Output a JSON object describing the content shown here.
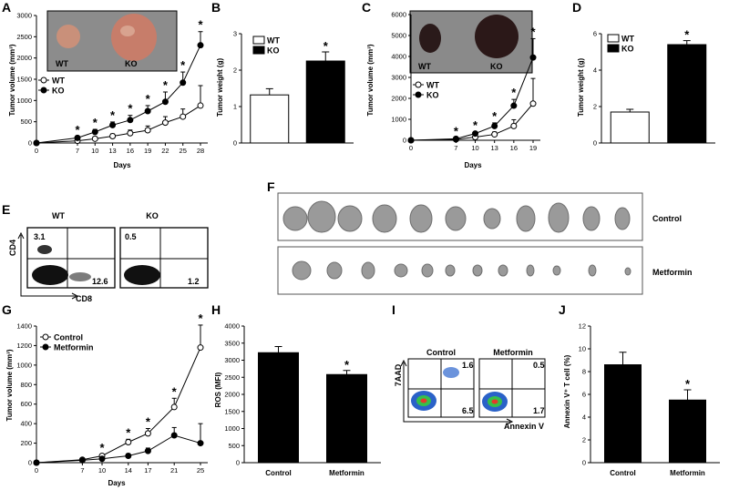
{
  "panels": {
    "A": {
      "letter": "A",
      "ylabel": "Tumor volume (mm³)",
      "xlabel": "Days",
      "photo_labels": [
        "WT",
        "KO"
      ]
    },
    "B": {
      "letter": "B",
      "ylabel": "Tumor weight (g)"
    },
    "C": {
      "letter": "C",
      "ylabel": "Tumor volume (mm³)",
      "xlabel": "Days",
      "photo_labels": [
        "WT",
        "KO"
      ]
    },
    "D": {
      "letter": "D",
      "ylabel": "Tumor weight (g)"
    },
    "E": {
      "letter": "E",
      "col_labels": [
        "WT",
        "KO"
      ],
      "xaxis": "CD8",
      "yaxis": "CD4",
      "quadrants": [
        {
          "ul": "3.1",
          "lr": "12.6"
        },
        {
          "ul": "0.5",
          "lr": "1.2"
        }
      ]
    },
    "F": {
      "letter": "F",
      "rows": [
        "Control",
        "Metformin"
      ]
    },
    "G": {
      "letter": "G",
      "ylabel": "Tumor volume (mm³)",
      "xlabel": "Days"
    },
    "H": {
      "letter": "H",
      "ylabel": "ROS (MFI)"
    },
    "I": {
      "letter": "I",
      "col_labels": [
        "Control",
        "Metformin"
      ],
      "xaxis": "Annexin V",
      "yaxis": "7AAD",
      "quadrants": [
        {
          "ur": "1.6",
          "lr": "6.5"
        },
        {
          "ur": "0.5",
          "lr": "1.7"
        }
      ]
    },
    "J": {
      "letter": "J",
      "ylabel": "Annexin V⁺ T cell (%)"
    }
  },
  "chart_data": [
    {
      "id": "A",
      "type": "line",
      "x": [
        0,
        7,
        10,
        13,
        16,
        19,
        22,
        25,
        28
      ],
      "ylim": [
        0,
        3000
      ],
      "yticks": [
        0,
        500,
        1000,
        1500,
        2000,
        2500,
        3000
      ],
      "series": [
        {
          "name": "WT",
          "values": [
            0,
            50,
            100,
            160,
            230,
            300,
            480,
            620,
            880
          ],
          "err": [
            0,
            25,
            45,
            55,
            75,
            100,
            140,
            180,
            470
          ],
          "fill": "#fff"
        },
        {
          "name": "KO",
          "values": [
            0,
            120,
            260,
            420,
            540,
            750,
            970,
            1420,
            2300
          ],
          "err": [
            0,
            30,
            60,
            75,
            110,
            130,
            230,
            250,
            320
          ],
          "fill": "#000"
        }
      ],
      "star_idx": [
        1,
        2,
        3,
        4,
        5,
        6,
        7,
        8
      ]
    },
    {
      "id": "B",
      "type": "bar",
      "categories": [
        "WT",
        "KO"
      ],
      "values": [
        1.32,
        2.25
      ],
      "err": [
        0.17,
        0.25
      ],
      "ylim": [
        0,
        3
      ],
      "yticks": [
        0,
        1,
        2,
        3
      ],
      "fills": [
        "#fff",
        "#000"
      ],
      "star": [
        false,
        true
      ]
    },
    {
      "id": "C",
      "type": "line",
      "x": [
        0,
        7,
        10,
        13,
        16,
        19
      ],
      "ylim": [
        0,
        6000
      ],
      "yticks": [
        0,
        1000,
        2000,
        3000,
        4000,
        5000,
        6000
      ],
      "series": [
        {
          "name": "WT",
          "values": [
            0,
            40,
            150,
            280,
            680,
            1750
          ],
          "err": [
            0,
            30,
            50,
            120,
            300,
            1200
          ],
          "fill": "#fff"
        },
        {
          "name": "KO",
          "values": [
            0,
            70,
            320,
            680,
            1650,
            3950
          ],
          "err": [
            0,
            40,
            70,
            150,
            300,
            900
          ],
          "fill": "#000"
        }
      ],
      "star_idx": [
        1,
        2,
        3,
        4,
        5
      ]
    },
    {
      "id": "D",
      "type": "bar",
      "categories": [
        "WT",
        "KO"
      ],
      "values": [
        1.7,
        5.4
      ],
      "err": [
        0.15,
        0.22
      ],
      "ylim": [
        0,
        6
      ],
      "yticks": [
        0,
        2,
        4,
        6
      ],
      "fills": [
        "#fff",
        "#000"
      ],
      "star": [
        false,
        true
      ]
    },
    {
      "id": "G",
      "type": "line",
      "x": [
        0,
        7,
        10,
        14,
        17,
        21,
        25
      ],
      "ylim": [
        0,
        1400
      ],
      "yticks": [
        0,
        200,
        400,
        600,
        800,
        1000,
        1200,
        1400
      ],
      "series": [
        {
          "name": "Control",
          "values": [
            0,
            30,
            70,
            210,
            300,
            570,
            1180
          ],
          "err": [
            0,
            10,
            15,
            30,
            50,
            90,
            230
          ],
          "fill": "#fff"
        },
        {
          "name": "Metformin",
          "values": [
            0,
            25,
            40,
            70,
            120,
            280,
            200
          ],
          "err": [
            0,
            10,
            10,
            20,
            30,
            80,
            200
          ],
          "fill": "#000"
        }
      ],
      "star_idx": [
        2,
        3,
        4,
        5,
        6
      ]
    },
    {
      "id": "H",
      "type": "bar",
      "categories": [
        "Control",
        "Metformin"
      ],
      "values": [
        3220,
        2580
      ],
      "err": [
        180,
        120
      ],
      "ylim": [
        0,
        4000
      ],
      "yticks": [
        0,
        500,
        1000,
        1500,
        2000,
        2500,
        3000,
        3500,
        4000
      ],
      "fills": [
        "#000",
        "#000"
      ],
      "star": [
        false,
        true
      ]
    },
    {
      "id": "J",
      "type": "bar",
      "categories": [
        "Control",
        "Metformin"
      ],
      "values": [
        8.6,
        5.5
      ],
      "err": [
        1.1,
        0.9
      ],
      "ylim": [
        0,
        12
      ],
      "yticks": [
        0,
        2,
        4,
        6,
        8,
        10,
        12
      ],
      "fills": [
        "#000",
        "#000"
      ],
      "star": [
        false,
        true
      ]
    }
  ]
}
